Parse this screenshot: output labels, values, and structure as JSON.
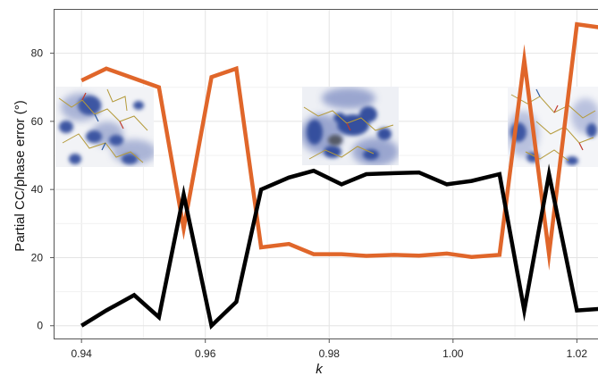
{
  "chart_data": {
    "type": "line",
    "xlabel": "k",
    "ylabel": "Partial CC/phase error (°)",
    "xlim": [
      0.9355,
      1.025
    ],
    "ylim": [
      -4,
      93
    ],
    "x_ticks": [
      0.94,
      0.96,
      0.98,
      1.0,
      1.02
    ],
    "x_tick_labels": [
      "0.94",
      "0.96",
      "0.98",
      "1.00",
      "1.02"
    ],
    "y_ticks": [
      0,
      20,
      40,
      60,
      80
    ],
    "y_tick_labels": [
      "0",
      "20",
      "40",
      "60",
      "80"
    ],
    "grid": true,
    "legend": "none",
    "series": [
      {
        "color": "#e0662a",
        "x": [
          0.94,
          0.944,
          0.9525,
          0.9565,
          0.961,
          0.965,
          0.969,
          0.9735,
          0.9775,
          0.982,
          0.986,
          0.9905,
          0.9945,
          0.999,
          1.003,
          1.0075,
          1.0115,
          1.0155,
          1.02,
          1.024
        ],
        "y": [
          72,
          75.5,
          70,
          28.5,
          73,
          75.5,
          23,
          24,
          21,
          21,
          20.5,
          20.8,
          20.6,
          21.2,
          20.2,
          20.8,
          78,
          21,
          88.5,
          87.5
        ]
      },
      {
        "color": "#000000",
        "x": [
          0.94,
          0.944,
          0.9485,
          0.9525,
          0.9565,
          0.961,
          0.965,
          0.969,
          0.9735,
          0.9775,
          0.982,
          0.986,
          0.9905,
          0.9945,
          0.999,
          1.003,
          1.0075,
          1.0115,
          1.0155,
          1.02,
          1.024
        ],
        "y": [
          0,
          4.5,
          9,
          2.5,
          38.5,
          0,
          7,
          40,
          43.5,
          45.5,
          41.5,
          44.5,
          44.8,
          45,
          41.5,
          42.5,
          44.5,
          4.5,
          44.5,
          4.5,
          5
        ]
      }
    ]
  },
  "insets": [
    {
      "icon": "electron-density-map-icon"
    },
    {
      "icon": "electron-density-map-icon"
    },
    {
      "icon": "electron-density-map-icon"
    }
  ]
}
